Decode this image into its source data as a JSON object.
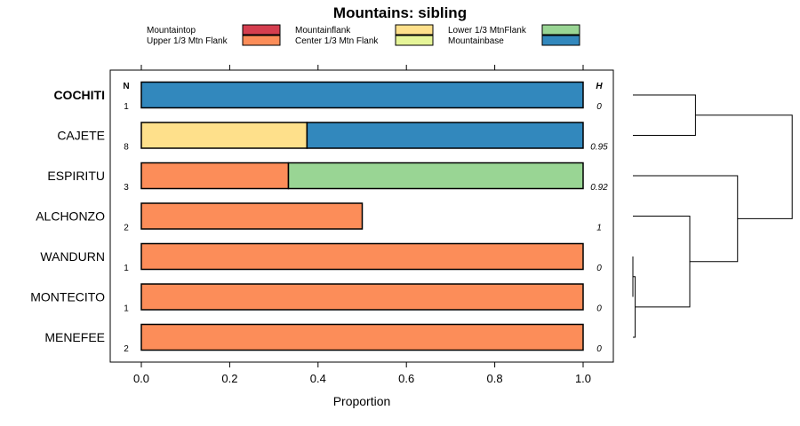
{
  "chart_data": {
    "type": "bar",
    "orientation": "horizontal",
    "stacked": true,
    "title": "Mountains: sibling",
    "xlabel": "Proportion",
    "ylabel": "",
    "xlim": [
      0.0,
      1.0
    ],
    "xticks": [
      "0.0",
      "0.2",
      "0.4",
      "0.6",
      "0.8",
      "1.0"
    ],
    "n_header": "N",
    "h_header": "H",
    "legend": [
      {
        "name": "Mountaintop",
        "color": "#d53e4f"
      },
      {
        "name": "Upper 1/3 Mtn Flank",
        "color": "#fc8d59"
      },
      {
        "name": "Mountainflank",
        "color": "#fee08b"
      },
      {
        "name": "Center 1/3 Mtn Flank",
        "color": "#e6f598"
      },
      {
        "name": "Lower 1/3 MtnFlank",
        "color": "#99d594"
      },
      {
        "name": "Mountainbase",
        "color": "#3288bd"
      }
    ],
    "categories": [
      "COCHITI",
      "CAJETE",
      "ESPIRITU",
      "ALCHONZO",
      "WANDURN",
      "MONTECITO",
      "MENEFEE"
    ],
    "highlighted_category": "COCHITI",
    "n_values": [
      "1",
      "8",
      "3",
      "2",
      "1",
      "1",
      "2"
    ],
    "h_values": [
      "0",
      "0.95",
      "0.92",
      "1",
      "0",
      "0",
      "0"
    ],
    "bars": [
      [
        {
          "series": "Mountainbase",
          "value": 1.0
        }
      ],
      [
        {
          "series": "Mountainflank",
          "value": 0.375
        },
        {
          "series": "Mountainbase",
          "value": 0.625
        }
      ],
      [
        {
          "series": "Upper 1/3 Mtn Flank",
          "value": 0.333
        },
        {
          "series": "Lower 1/3 MtnFlank",
          "value": 0.667
        }
      ],
      [
        {
          "series": "Upper 1/3 Mtn Flank",
          "value": 0.5
        }
      ],
      [
        {
          "series": "Upper 1/3 Mtn Flank",
          "value": 1.0
        }
      ],
      [
        {
          "series": "Upper 1/3 Mtn Flank",
          "value": 1.0
        }
      ],
      [
        {
          "series": "Upper 1/3 Mtn Flank",
          "value": 1.0
        }
      ]
    ],
    "dendrogram": {
      "leaf_order": [
        "COCHITI",
        "CAJETE",
        "ESPIRITU",
        "ALCHONZO",
        "WANDURN",
        "MONTECITO",
        "MENEFEE"
      ],
      "merges": [
        {
          "a": "WANDURN",
          "b": "MONTECITO",
          "height": 0.0
        },
        {
          "a": "WANDURN+MONTECITO",
          "b": "MENEFEE",
          "height": 0.02
        },
        {
          "a": "ALCHONZO",
          "b": "WANDURN+MONTECITO+MENEFEE",
          "height": 0.5
        },
        {
          "a": "ESPIRITU",
          "b": "ALCHONZO+WANDURN+MONTECITO+MENEFEE",
          "height": 0.92
        },
        {
          "a": "COCHITI",
          "b": "CAJETE",
          "height": 0.55
        },
        {
          "a": "COCHITI+CAJETE",
          "b": "ESPIRITU+ALCHONZO+WANDURN+MONTECITO+MENEFEE",
          "height": 1.4
        }
      ]
    }
  }
}
